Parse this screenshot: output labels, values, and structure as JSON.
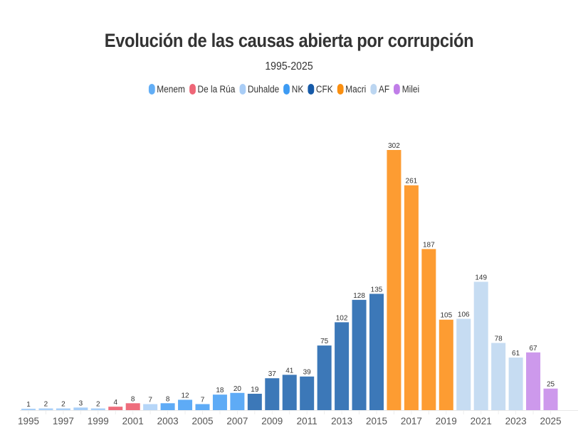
{
  "chart_data": {
    "type": "bar",
    "title": "Evolución de las causas abierta por corrupción",
    "subtitle": "1995-2025",
    "xlabel": "",
    "ylabel": "",
    "ylim": [
      0,
      302
    ],
    "grid": false,
    "legend_position": "top-center",
    "legend": [
      {
        "name": "Menem",
        "color": "#62aef6"
      },
      {
        "name": "De la Rúa",
        "color": "#ee6677"
      },
      {
        "name": "Duhalde",
        "color": "#a9cdf6"
      },
      {
        "name": "NK",
        "color": "#3d9bf3"
      },
      {
        "name": "CFK",
        "color": "#165aa8"
      },
      {
        "name": "Macri",
        "color": "#fa8f10"
      },
      {
        "name": "AF",
        "color": "#bcd6f1"
      },
      {
        "name": "Milei",
        "color": "#c07ee8"
      }
    ],
    "categories": [
      "1995",
      "1996",
      "1997",
      "1998",
      "1999",
      "2000",
      "2001",
      "2002",
      "2003",
      "2004",
      "2005",
      "2006",
      "2007",
      "2008",
      "2009",
      "2010",
      "2011",
      "2012",
      "2013",
      "2014",
      "2015",
      "2016",
      "2017",
      "2018",
      "2019",
      "2020",
      "2021",
      "2022",
      "2023",
      "2024",
      "2025"
    ],
    "values": [
      1,
      2,
      2,
      3,
      2,
      4,
      8,
      7,
      8,
      12,
      7,
      18,
      20,
      19,
      37,
      41,
      39,
      75,
      102,
      128,
      135,
      302,
      261,
      187,
      105,
      106,
      149,
      78,
      61,
      67,
      25
    ],
    "bar_colors": [
      "#a8cff8",
      "#a8cff8",
      "#a8cff8",
      "#a8cff8",
      "#a8cff8",
      "#ee6d7c",
      "#ee6d7c",
      "#b6d6f8",
      "#5eabf6",
      "#5eabf6",
      "#5eabf6",
      "#5eabf6",
      "#5eabf6",
      "#3c78b8",
      "#3c78b8",
      "#3c78b8",
      "#3c78b8",
      "#3c78b8",
      "#3c78b8",
      "#3c78b8",
      "#3c78b8",
      "#fd9c32",
      "#fd9c32",
      "#fd9c32",
      "#fd9c32",
      "#c6dcf2",
      "#c6dcf2",
      "#c6dcf2",
      "#c6dcf2",
      "#cd99ec",
      "#cd99ec"
    ],
    "x_tick_labels": [
      "1995",
      "1997",
      "1999",
      "2001",
      "2003",
      "2005",
      "2007",
      "2009",
      "2011",
      "2013",
      "2015",
      "2017",
      "2019",
      "2021",
      "2023",
      "2025"
    ]
  }
}
